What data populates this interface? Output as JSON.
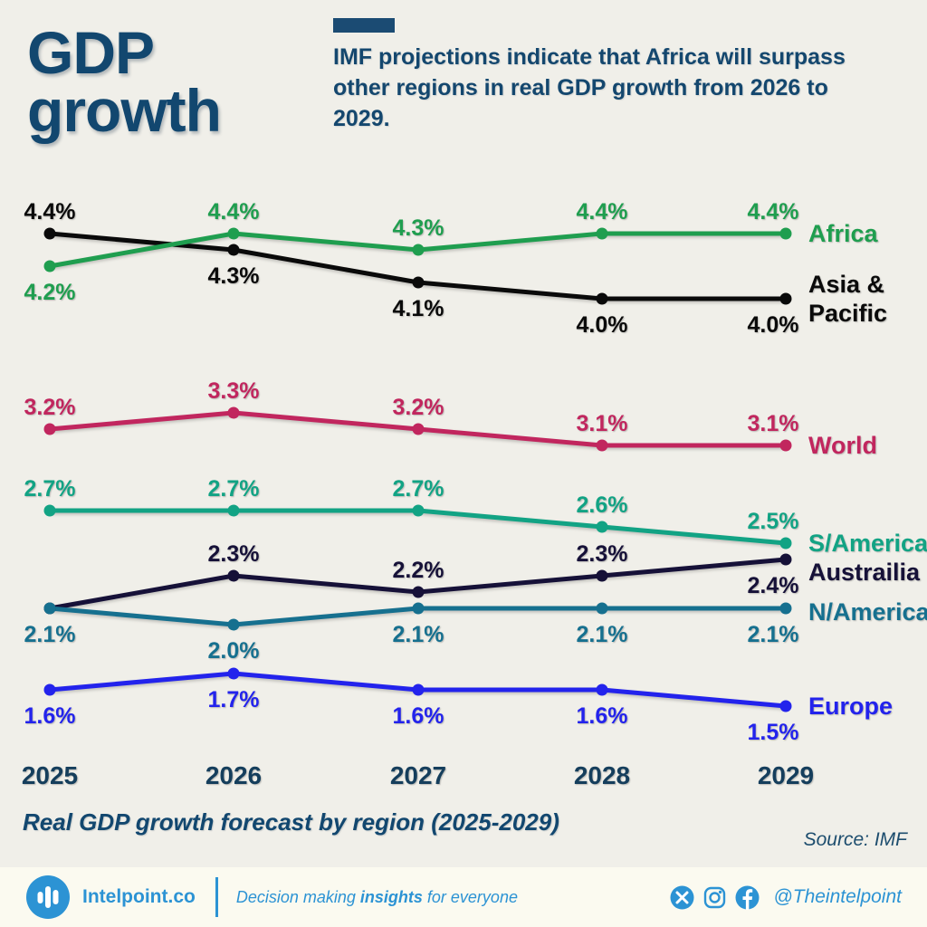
{
  "header": {
    "title_line1": "GDP",
    "title_line2": "growth",
    "subtitle": "IMF projections indicate that Africa will surpass other regions in real GDP growth from 2026 to 2029."
  },
  "chart_data": {
    "type": "line",
    "title": "Real GDP growth forecast by region (2025-2029)",
    "x": [
      "2025",
      "2026",
      "2027",
      "2028",
      "2029"
    ],
    "unit": "%",
    "ylim": [
      1.3,
      4.7
    ],
    "grid": false,
    "legend_position": "right-of-line-ends",
    "series": [
      {
        "name": "Asia & Pacific",
        "legend_lines": [
          "Asia &",
          "Pacific"
        ],
        "color": "#0a0a0a",
        "values": [
          4.4,
          4.3,
          4.1,
          4.0,
          4.0
        ],
        "label_pos": [
          "above",
          "below",
          "below",
          "below",
          "below"
        ]
      },
      {
        "name": "Africa",
        "legend_lines": [
          "Africa"
        ],
        "color": "#1f9e4f",
        "values": [
          4.2,
          4.4,
          4.3,
          4.4,
          4.4
        ],
        "label_pos": [
          "below",
          "above",
          "above",
          "above",
          "above"
        ]
      },
      {
        "name": "World",
        "legend_lines": [
          "World"
        ],
        "color": "#c1265e",
        "values": [
          3.2,
          3.3,
          3.2,
          3.1,
          3.1
        ],
        "label_pos": [
          "above",
          "above",
          "above",
          "above",
          "above"
        ]
      },
      {
        "name": "S/America",
        "legend_lines": [
          "S/America"
        ],
        "color": "#12a384",
        "values": [
          2.7,
          2.7,
          2.7,
          2.6,
          2.5
        ],
        "label_pos": [
          "above",
          "above",
          "above",
          "above",
          "above"
        ]
      },
      {
        "name": "Austrailia",
        "legend_lines": [
          "Austrailia"
        ],
        "color": "#161138",
        "values": [
          2.1,
          2.3,
          2.2,
          2.3,
          2.4
        ],
        "label_pos": [
          "none",
          "above",
          "above",
          "above",
          "below"
        ],
        "legend_dy": 14
      },
      {
        "name": "N/America",
        "legend_lines": [
          "N/America"
        ],
        "color": "#16708f",
        "values": [
          2.1,
          2.0,
          2.1,
          2.1,
          2.1
        ],
        "label_pos": [
          "below",
          "below",
          "below",
          "below",
          "below"
        ],
        "legend_dy": 4
      },
      {
        "name": "Europe",
        "legend_lines": [
          "Europe"
        ],
        "color": "#2323ec",
        "values": [
          1.6,
          1.7,
          1.6,
          1.6,
          1.5
        ],
        "label_pos": [
          "below",
          "below",
          "below",
          "below",
          "below"
        ]
      }
    ]
  },
  "caption": "Real GDP growth forecast by region (2025-2029)",
  "source": "Source: IMF",
  "footer": {
    "brand": "Intelpoint.co",
    "tagline_prefix": "Decision making ",
    "tagline_bold": "insights",
    "tagline_suffix": " for everyone",
    "handle": "@Theintelpoint",
    "logo_icon": "bar-chart-logo-icon",
    "social_icons": [
      "x-icon",
      "instagram-icon",
      "facebook-icon"
    ]
  },
  "colors": {
    "background": "#f0efe9",
    "footer_background": "#fbfaf0",
    "title_navy": "#12476f",
    "axis_text": "#153e5c",
    "brand_blue": "#2c93d4"
  }
}
